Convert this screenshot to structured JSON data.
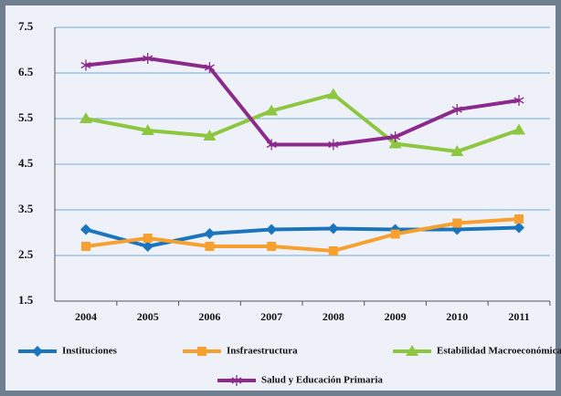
{
  "chart_data": {
    "type": "line",
    "categories": [
      "2004",
      "2005",
      "2006",
      "2007",
      "2008",
      "2009",
      "2010",
      "2011"
    ],
    "ylim": [
      1.5,
      7.5
    ],
    "yticks": [
      1.5,
      2.5,
      3.5,
      4.5,
      5.5,
      6.5,
      7.5
    ],
    "grid": true,
    "legend": "bottom",
    "series": [
      {
        "name": "Instituciones",
        "color": "#1b75bc",
        "marker": "diamond",
        "values": [
          3.07,
          2.7,
          2.98,
          3.07,
          3.09,
          3.07,
          3.07,
          3.11
        ]
      },
      {
        "name": "Insfraestructura",
        "color": "#f7a030",
        "marker": "square",
        "values": [
          2.7,
          2.88,
          2.7,
          2.7,
          2.6,
          2.97,
          3.21,
          3.3
        ]
      },
      {
        "name": "Estabilidad Macroeconómica",
        "color": "#8dc63f",
        "marker": "triangle",
        "values": [
          5.5,
          5.24,
          5.12,
          5.67,
          6.03,
          4.95,
          4.78,
          5.25
        ]
      },
      {
        "name": "Salud y Educación Primaria",
        "color": "#8b2a8b",
        "marker": "star",
        "values": [
          6.67,
          6.82,
          6.62,
          4.93,
          4.93,
          5.1,
          5.7,
          5.9
        ]
      }
    ]
  }
}
